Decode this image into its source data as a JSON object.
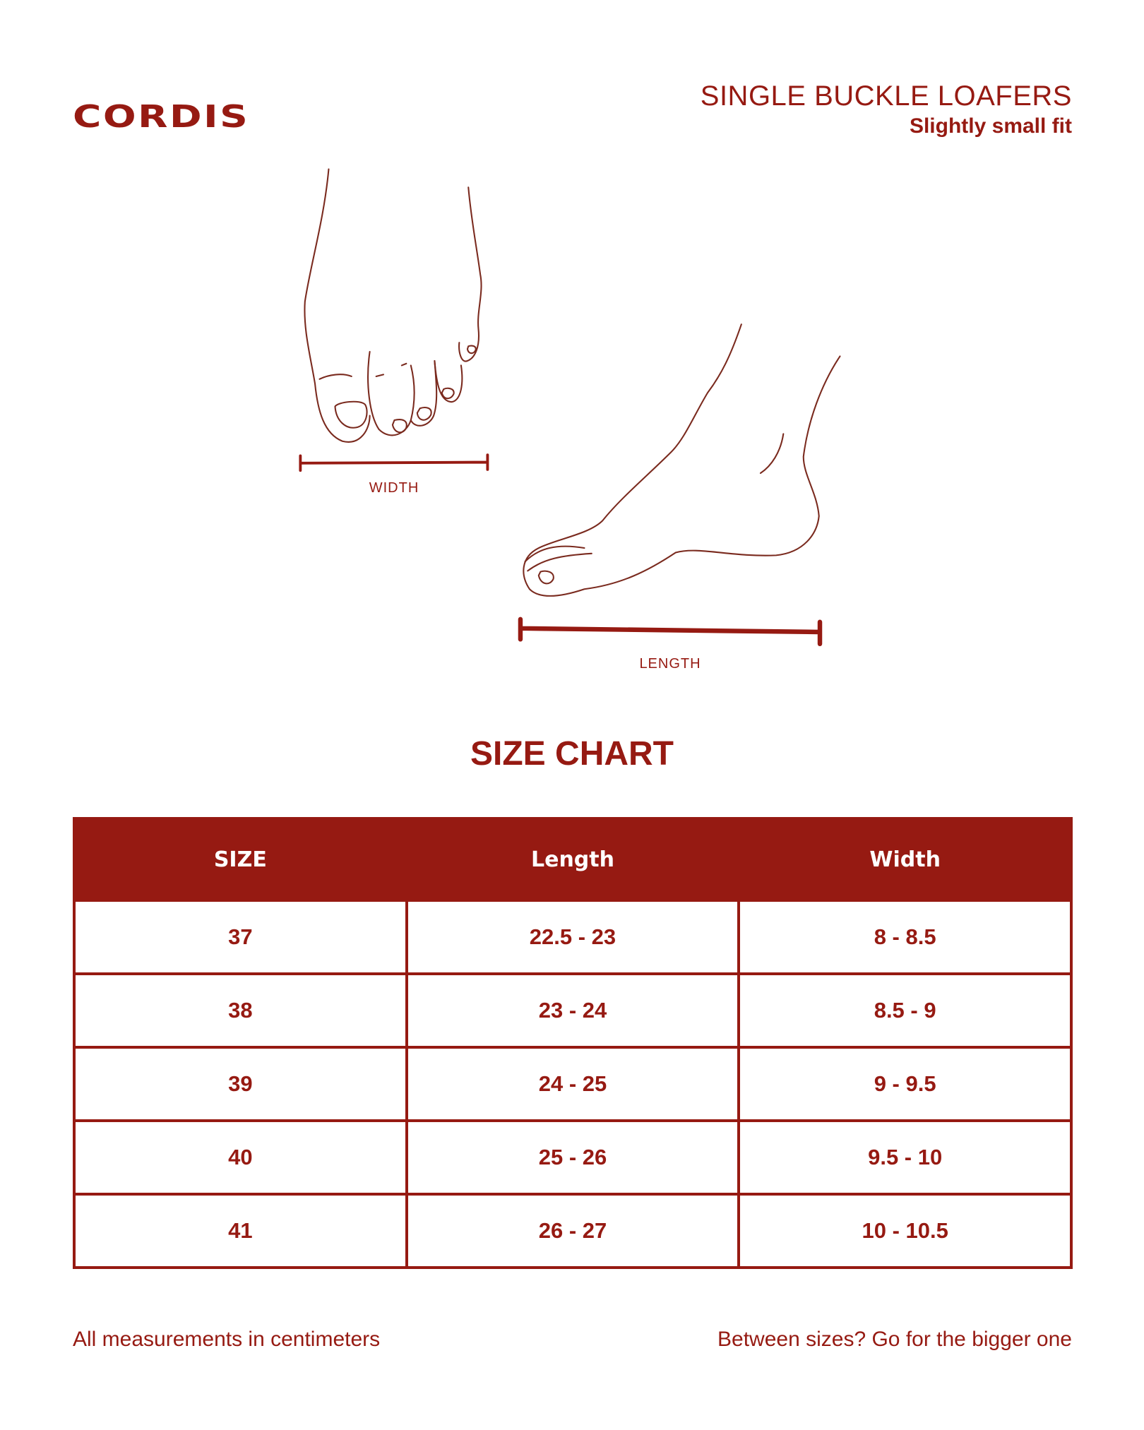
{
  "brand": "CORDIS",
  "product": {
    "title": "SINGLE BUCKLE LOAFERS",
    "fit": "Slightly small fit"
  },
  "illustration": {
    "width_label": "WIDTH",
    "length_label": "LENGTH"
  },
  "size_chart": {
    "title": "SIZE CHART",
    "headers": [
      "SIZE",
      "Length",
      "Width"
    ],
    "rows": [
      [
        "37",
        "22.5 - 23",
        "8 - 8.5"
      ],
      [
        "38",
        "23 - 24",
        "8.5 - 9"
      ],
      [
        "39",
        "24 - 25",
        "9 - 9.5"
      ],
      [
        "40",
        "25 - 26",
        "9.5 - 10"
      ],
      [
        "41",
        "26 - 27",
        "10 - 10.5"
      ]
    ]
  },
  "footer": {
    "left": "All measurements in centimeters",
    "right": "Between sizes? Go for the bigger one"
  },
  "colors": {
    "accent": "#961a12",
    "background": "#ffffff"
  }
}
